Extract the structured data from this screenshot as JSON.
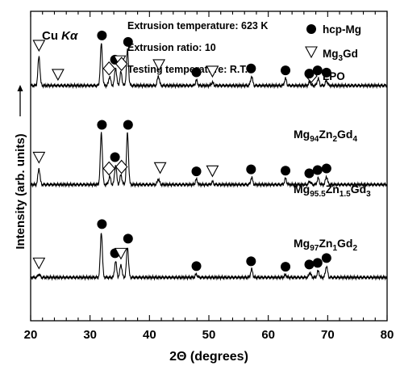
{
  "chart_data": {
    "type": "line",
    "radiation": "Cu Kα",
    "radiation_parts": {
      "element": "Cu ",
      "line": "Kα"
    },
    "annotations": [
      "Extrusion temperature: 623 K",
      "Extrusion ratio: 10",
      "Testing temperature: R.T."
    ],
    "xlabel": "2Θ (degrees)",
    "ylabel": "Intensity (arb. units) ⟶",
    "ylabel_text": "Intensity (arb. units)",
    "xlim": [
      20,
      80
    ],
    "xticks": [
      "20",
      "30",
      "40",
      "50",
      "60",
      "70",
      "80"
    ],
    "legend": [
      {
        "symbol": "filled-circle",
        "label": "hcp-Mg",
        "label_text": "hcp-Mg"
      },
      {
        "symbol": "open-down-triangle",
        "label": "Mg3Gd",
        "label_parts": [
          "Mg",
          "3",
          "Gd"
        ]
      },
      {
        "symbol": "open-diamond",
        "label": "LPO",
        "label_text": "LPO"
      }
    ],
    "series": [
      {
        "name": "Mg94Zn2Gd4",
        "name_parts": [
          "Mg",
          "94",
          "Zn",
          "2",
          "Gd",
          "4"
        ],
        "baseline": 0.76,
        "peaks": [
          [
            21.4,
            0.9
          ],
          [
            31.9,
            1.3
          ],
          [
            33.3,
            0.28
          ],
          [
            34.3,
            0.55
          ],
          [
            35.2,
            0.42
          ],
          [
            36.3,
            1.1
          ],
          [
            41.5,
            0.3
          ],
          [
            47.9,
            0.16
          ],
          [
            50.6,
            0.1
          ],
          [
            57.2,
            0.28
          ],
          [
            62.9,
            0.22
          ],
          [
            67,
            0.12
          ],
          [
            68.4,
            0.22
          ],
          [
            69.8,
            0.15
          ]
        ],
        "hcp_mg_markers": [
          32.0,
          34.2,
          36.4,
          47.9,
          57.1,
          62.9,
          66.9,
          68.3,
          69.8
        ],
        "mg3gd_markers": [
          21.4,
          24.6,
          35.0,
          41.6,
          50.6
        ],
        "lpo_markers": [
          33.2,
          35.3
        ]
      },
      {
        "name": "Mg95.5Zn1.5Gd3",
        "name_parts": [
          "Mg",
          "95.5",
          "Zn",
          "1.5",
          "Gd",
          "3"
        ],
        "baseline": 0.44,
        "peaks": [
          [
            21.4,
            0.5
          ],
          [
            31.9,
            1.6
          ],
          [
            33.3,
            0.25
          ],
          [
            34.3,
            0.6
          ],
          [
            35.2,
            0.3
          ],
          [
            36.3,
            1.6
          ],
          [
            41.5,
            0.18
          ],
          [
            47.9,
            0.16
          ],
          [
            50.6,
            0.08
          ],
          [
            57.2,
            0.22
          ],
          [
            62.9,
            0.18
          ],
          [
            67,
            0.1
          ],
          [
            68.4,
            0.2
          ],
          [
            69.8,
            0.25
          ]
        ],
        "hcp_mg_markers": [
          32.0,
          34.2,
          36.4,
          47.9,
          57.1,
          62.9,
          66.9,
          68.3,
          69.8
        ],
        "mg3gd_markers": [
          21.4,
          41.8,
          50.6
        ],
        "lpo_markers": [
          33.2,
          35.3
        ]
      },
      {
        "name": "Mg97Zn1Gd2",
        "name_parts": [
          "Mg",
          "97",
          "Zn",
          "1",
          "Gd",
          "2"
        ],
        "baseline": 0.14,
        "peaks": [
          [
            21.4,
            0.1
          ],
          [
            31.9,
            1.4
          ],
          [
            34.3,
            0.5
          ],
          [
            35.2,
            0.4
          ],
          [
            36.3,
            0.95
          ],
          [
            47.9,
            0.1
          ],
          [
            57.2,
            0.25
          ],
          [
            62.9,
            0.08
          ],
          [
            67,
            0.15
          ],
          [
            68.4,
            0.2
          ],
          [
            69.8,
            0.35
          ]
        ],
        "hcp_mg_markers": [
          32.0,
          34.2,
          36.4,
          47.9,
          57.1,
          62.9,
          66.9,
          68.3,
          69.8
        ],
        "mg3gd_markers": [
          21.4,
          35.2
        ],
        "lpo_markers": []
      }
    ]
  }
}
